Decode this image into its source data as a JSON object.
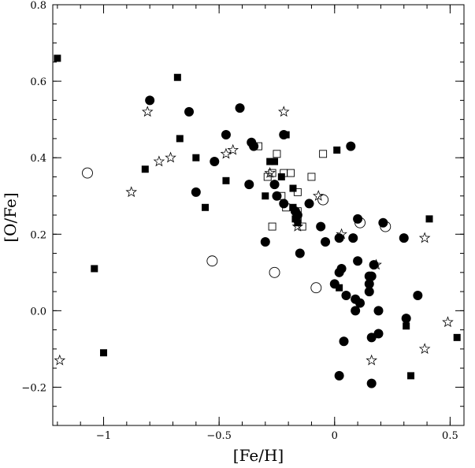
{
  "chart_data": {
    "type": "scatter",
    "title": "",
    "xlabel": "[Fe/H]",
    "ylabel": "[O/Fe]",
    "xlim": [
      -1.22,
      0.56
    ],
    "ylim": [
      -0.3,
      0.8
    ],
    "xticks": [
      {
        "value": -1.0,
        "label": "−1"
      },
      {
        "value": -0.5,
        "label": "−0.5"
      },
      {
        "value": 0.0,
        "label": "0"
      },
      {
        "value": 0.5,
        "label": "0.5"
      }
    ],
    "yticks": [
      {
        "value": -0.2,
        "label": "−0.2"
      },
      {
        "value": 0.0,
        "label": "0.0"
      },
      {
        "value": 0.2,
        "label": "0.2"
      },
      {
        "value": 0.4,
        "label": "0.4"
      },
      {
        "value": 0.6,
        "label": "0.6"
      },
      {
        "value": 0.8,
        "label": "0.8"
      }
    ],
    "minor_x_step": 0.1,
    "minor_y_step": 0.05,
    "grid": false,
    "legend": "none",
    "series": [
      {
        "marker": "filled-circle",
        "color": "#000000",
        "points": [
          [
            -0.8,
            0.55
          ],
          [
            -0.63,
            0.52
          ],
          [
            -0.41,
            0.53
          ],
          [
            -0.47,
            0.46
          ],
          [
            -0.36,
            0.44
          ],
          [
            -0.35,
            0.43
          ],
          [
            -0.22,
            0.46
          ],
          [
            0.07,
            0.43
          ],
          [
            -0.52,
            0.39
          ],
          [
            -0.37,
            0.33
          ],
          [
            -0.26,
            0.33
          ],
          [
            -0.6,
            0.31
          ],
          [
            -0.25,
            0.3
          ],
          [
            -0.22,
            0.28
          ],
          [
            -0.11,
            0.28
          ],
          [
            -0.17,
            0.26
          ],
          [
            -0.16,
            0.25
          ],
          [
            0.1,
            0.24
          ],
          [
            0.21,
            0.23
          ],
          [
            -0.06,
            0.22
          ],
          [
            0.02,
            0.19
          ],
          [
            0.08,
            0.19
          ],
          [
            0.3,
            0.19
          ],
          [
            -0.04,
            0.18
          ],
          [
            -0.3,
            0.18
          ],
          [
            -0.15,
            0.15
          ],
          [
            0.03,
            0.11
          ],
          [
            0.1,
            0.13
          ],
          [
            0.02,
            0.1
          ],
          [
            0.17,
            0.12
          ],
          [
            0.15,
            0.09
          ],
          [
            0.16,
            0.09
          ],
          [
            0.0,
            0.07
          ],
          [
            0.15,
            0.07
          ],
          [
            0.15,
            0.05
          ],
          [
            0.05,
            0.04
          ],
          [
            0.36,
            0.04
          ],
          [
            0.09,
            0.03
          ],
          [
            0.11,
            0.02
          ],
          [
            0.09,
            0.0
          ],
          [
            0.19,
            0.0
          ],
          [
            0.31,
            -0.02
          ],
          [
            0.16,
            -0.07
          ],
          [
            0.19,
            -0.06
          ],
          [
            0.04,
            -0.08
          ],
          [
            0.02,
            -0.17
          ],
          [
            0.16,
            -0.19
          ]
        ]
      },
      {
        "marker": "filled-square",
        "color": "#000000",
        "points": [
          [
            -1.2,
            0.66
          ],
          [
            -0.68,
            0.61
          ],
          [
            -0.21,
            0.46
          ],
          [
            0.01,
            0.42
          ],
          [
            -0.82,
            0.37
          ],
          [
            -0.67,
            0.45
          ],
          [
            -0.6,
            0.4
          ],
          [
            -0.28,
            0.39
          ],
          [
            -0.26,
            0.39
          ],
          [
            -0.23,
            0.35
          ],
          [
            -0.47,
            0.34
          ],
          [
            -0.18,
            0.32
          ],
          [
            -0.3,
            0.3
          ],
          [
            -0.56,
            0.27
          ],
          [
            -0.18,
            0.27
          ],
          [
            -0.17,
            0.24
          ],
          [
            -0.16,
            0.23
          ],
          [
            0.41,
            0.24
          ],
          [
            0.02,
            0.06
          ],
          [
            -1.04,
            0.11
          ],
          [
            -1.0,
            -0.11
          ],
          [
            0.31,
            -0.04
          ],
          [
            0.33,
            -0.17
          ],
          [
            0.53,
            -0.07
          ]
        ]
      },
      {
        "marker": "open-square",
        "color": "#000000",
        "points": [
          [
            -0.25,
            0.41
          ],
          [
            -0.33,
            0.43
          ],
          [
            -0.05,
            0.41
          ],
          [
            -0.27,
            0.36
          ],
          [
            -0.22,
            0.36
          ],
          [
            -0.19,
            0.36
          ],
          [
            -0.1,
            0.35
          ],
          [
            -0.29,
            0.35
          ],
          [
            -0.23,
            0.3
          ],
          [
            -0.21,
            0.27
          ],
          [
            -0.16,
            0.31
          ],
          [
            -0.16,
            0.26
          ],
          [
            -0.16,
            0.24
          ],
          [
            -0.27,
            0.22
          ],
          [
            -0.14,
            0.22
          ]
        ]
      },
      {
        "marker": "open-circle",
        "color": "#000000",
        "points": [
          [
            -1.07,
            0.36
          ],
          [
            -0.05,
            0.29
          ],
          [
            0.11,
            0.23
          ],
          [
            0.22,
            0.22
          ],
          [
            -0.53,
            0.13
          ],
          [
            -0.26,
            0.1
          ],
          [
            -0.08,
            0.06
          ]
        ]
      },
      {
        "marker": "open-star",
        "color": "#000000",
        "points": [
          [
            -0.81,
            0.52
          ],
          [
            -0.22,
            0.52
          ],
          [
            -0.44,
            0.42
          ],
          [
            -0.47,
            0.41
          ],
          [
            -0.71,
            0.4
          ],
          [
            -0.76,
            0.39
          ],
          [
            -0.28,
            0.36
          ],
          [
            -0.88,
            0.31
          ],
          [
            -0.07,
            0.3
          ],
          [
            -0.16,
            0.22
          ],
          [
            0.03,
            0.2
          ],
          [
            0.39,
            0.19
          ],
          [
            0.18,
            0.12
          ],
          [
            0.49,
            -0.03
          ],
          [
            0.39,
            -0.1
          ],
          [
            0.16,
            -0.13
          ],
          [
            -1.19,
            -0.13
          ]
        ]
      }
    ]
  }
}
